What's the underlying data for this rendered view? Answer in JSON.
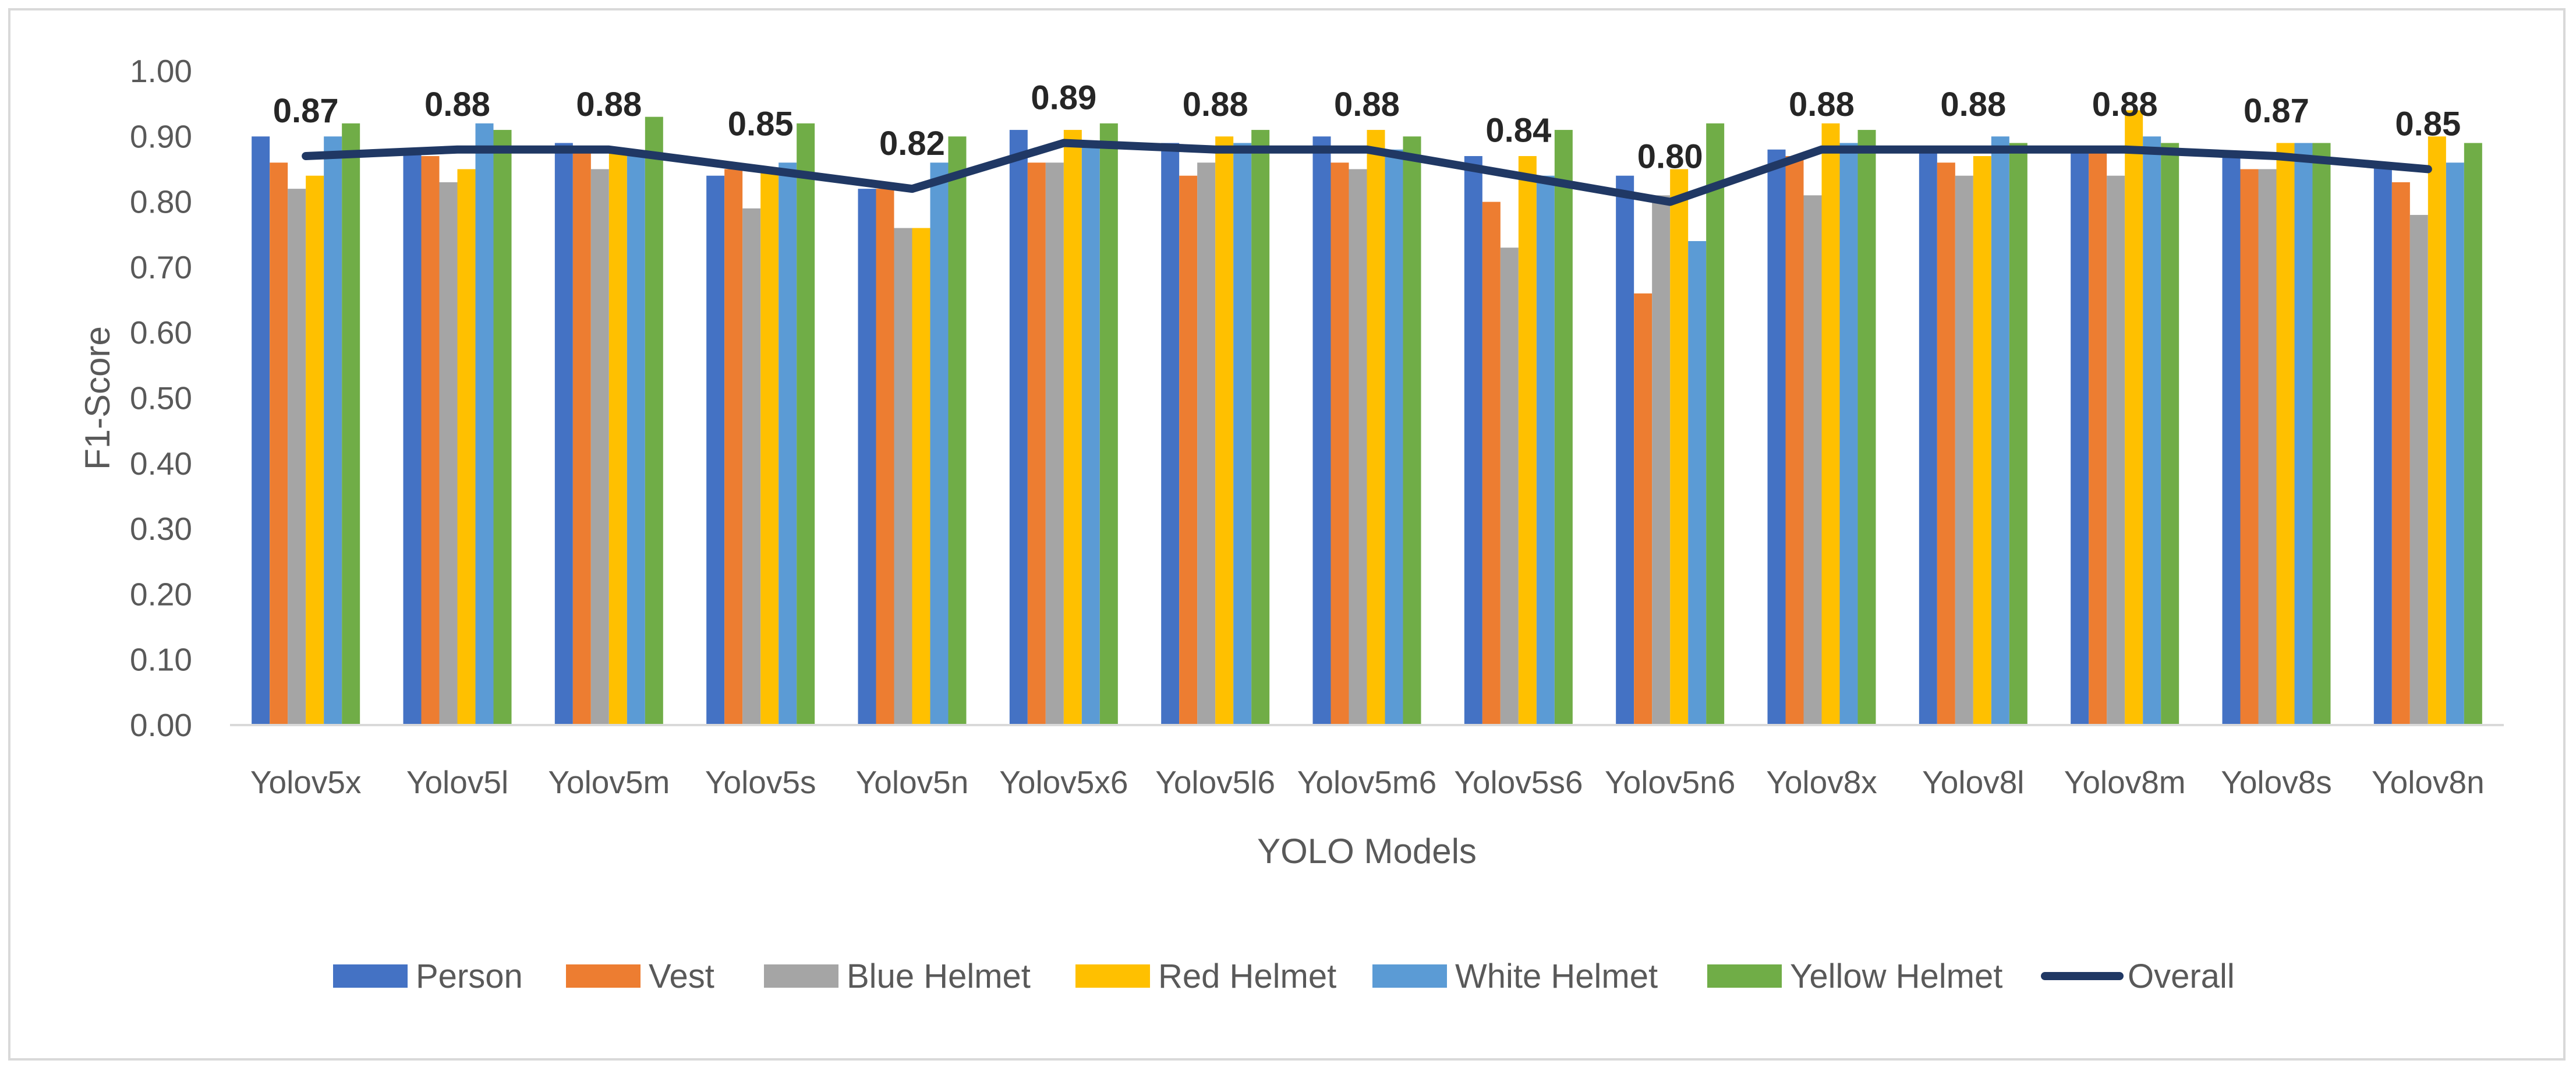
{
  "chart_data": {
    "type": "bar",
    "title": "",
    "xlabel": "YOLO Models",
    "ylabel": "F1-Score",
    "ylim": [
      0,
      1
    ],
    "yticks": [
      "0.00",
      "0.10",
      "0.20",
      "0.30",
      "0.40",
      "0.50",
      "0.60",
      "0.70",
      "0.80",
      "0.90",
      "1.00"
    ],
    "grid": false,
    "legend_position": "bottom",
    "categories": [
      "Yolov5x",
      "Yolov5l",
      "Yolov5m",
      "Yolov5s",
      "Yolov5n",
      "Yolov5x6",
      "Yolov5l6",
      "Yolov5m6",
      "Yolov5s6",
      "Yolov5n6",
      "Yolov8x",
      "Yolov8l",
      "Yolov8m",
      "Yolov8s",
      "Yolov8n"
    ],
    "series": [
      {
        "name": "Person",
        "color": "#4472c4",
        "values": [
          0.9,
          0.88,
          0.89,
          0.84,
          0.82,
          0.91,
          0.89,
          0.9,
          0.87,
          0.84,
          0.88,
          0.88,
          0.88,
          0.87,
          0.86
        ]
      },
      {
        "name": "Vest",
        "color": "#ed7d31",
        "values": [
          0.86,
          0.87,
          0.88,
          0.85,
          0.82,
          0.86,
          0.84,
          0.86,
          0.8,
          0.66,
          0.87,
          0.86,
          0.88,
          0.85,
          0.83
        ]
      },
      {
        "name": "Blue Helmet",
        "color": "#a5a5a5",
        "values": [
          0.82,
          0.83,
          0.85,
          0.79,
          0.76,
          0.86,
          0.86,
          0.85,
          0.73,
          0.81,
          0.81,
          0.84,
          0.84,
          0.85,
          0.78
        ]
      },
      {
        "name": "Red Helmet",
        "color": "#ffc000",
        "values": [
          0.84,
          0.85,
          0.88,
          0.85,
          0.76,
          0.91,
          0.9,
          0.91,
          0.87,
          0.85,
          0.92,
          0.87,
          0.94,
          0.89,
          0.9
        ]
      },
      {
        "name": "White Helmet",
        "color": "#5b9bd5",
        "values": [
          0.9,
          0.92,
          0.87,
          0.86,
          0.86,
          0.89,
          0.89,
          0.88,
          0.84,
          0.74,
          0.89,
          0.9,
          0.9,
          0.89,
          0.86
        ]
      },
      {
        "name": "Yellow Helmet",
        "color": "#70ad47",
        "values": [
          0.92,
          0.91,
          0.93,
          0.92,
          0.9,
          0.92,
          0.91,
          0.9,
          0.91,
          0.92,
          0.91,
          0.89,
          0.89,
          0.89,
          0.89
        ]
      }
    ],
    "overall": {
      "name": "Overall",
      "color": "#203864",
      "values": [
        0.87,
        0.88,
        0.88,
        0.85,
        0.82,
        0.89,
        0.88,
        0.88,
        0.84,
        0.8,
        0.88,
        0.88,
        0.88,
        0.87,
        0.85
      ],
      "labels": [
        "0.87",
        "0.88",
        "0.88",
        "0.85",
        "0.82",
        "0.89",
        "0.88",
        "0.88",
        "0.84",
        "0.80",
        "0.88",
        "0.88",
        "0.88",
        "0.87",
        "0.85"
      ]
    }
  }
}
